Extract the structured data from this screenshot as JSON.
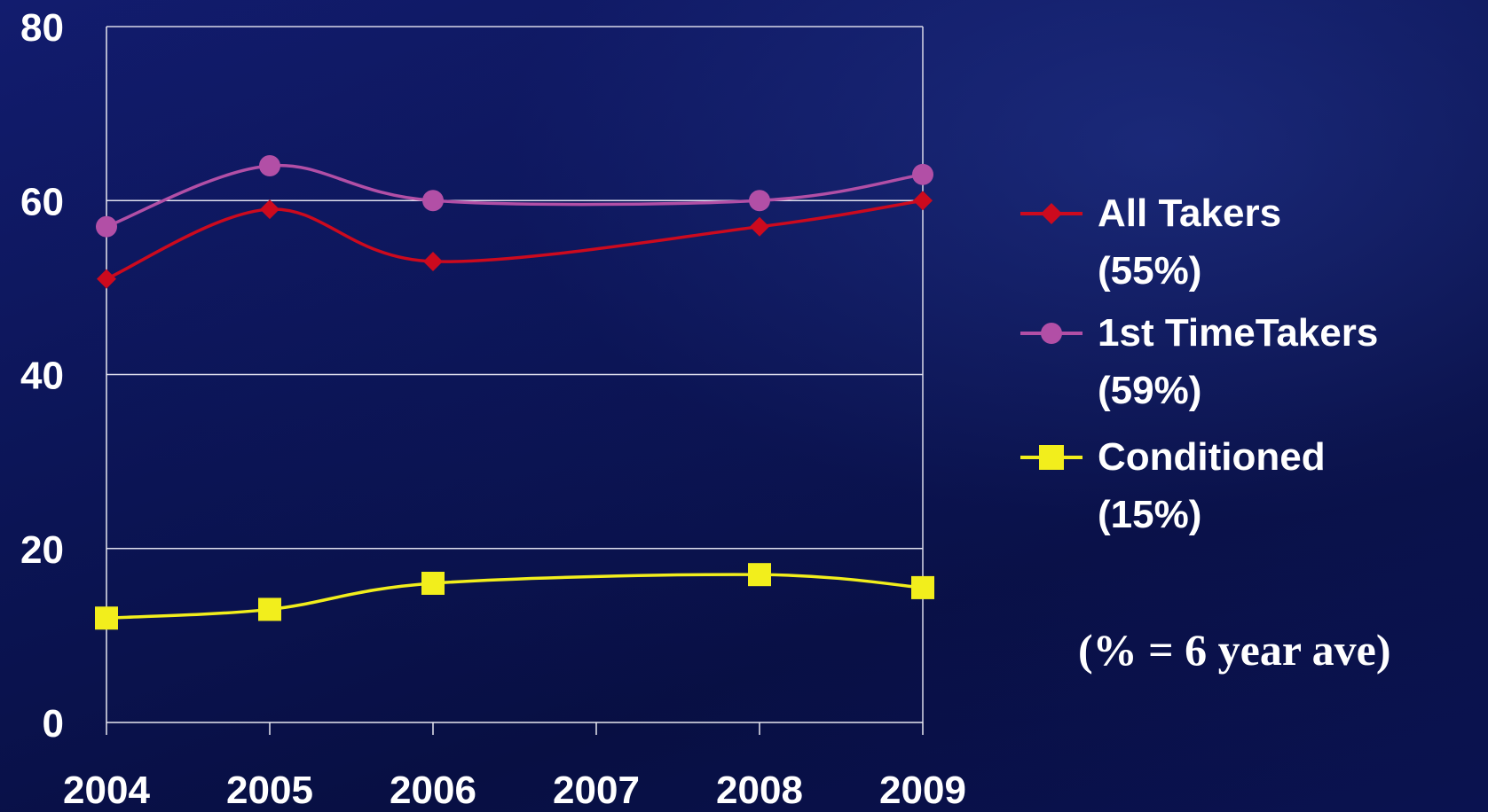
{
  "chart_data": {
    "type": "line",
    "x": [
      "2004",
      "2005",
      "2006",
      "2007",
      "2008",
      "2009"
    ],
    "ylim": [
      0,
      80
    ],
    "yticks": [
      0,
      20,
      40,
      60,
      80
    ],
    "grid": true,
    "legend_position": "right",
    "series": [
      {
        "name": "All Takers",
        "legend_pct": "(55%)",
        "color": "#cc0a1e",
        "marker": "diamond",
        "points": [
          [
            0,
            51
          ],
          [
            1,
            59
          ],
          [
            2,
            53
          ],
          [
            4,
            57
          ],
          [
            5,
            60
          ]
        ]
      },
      {
        "name": "1st TimeTakers",
        "legend_pct": "(59%)",
        "color": "#b24fa6",
        "marker": "circle",
        "points": [
          [
            0,
            57
          ],
          [
            1,
            64
          ],
          [
            2,
            60
          ],
          [
            4,
            60
          ],
          [
            5,
            63
          ]
        ]
      },
      {
        "name": "Conditioned",
        "legend_pct": "(15%)",
        "color": "#f2ee1c",
        "marker": "square",
        "points": [
          [
            0,
            12
          ],
          [
            1,
            13
          ],
          [
            2,
            16
          ],
          [
            4,
            17
          ],
          [
            5,
            15.5
          ]
        ]
      }
    ],
    "annotation": "(% = 6 year ave)"
  }
}
